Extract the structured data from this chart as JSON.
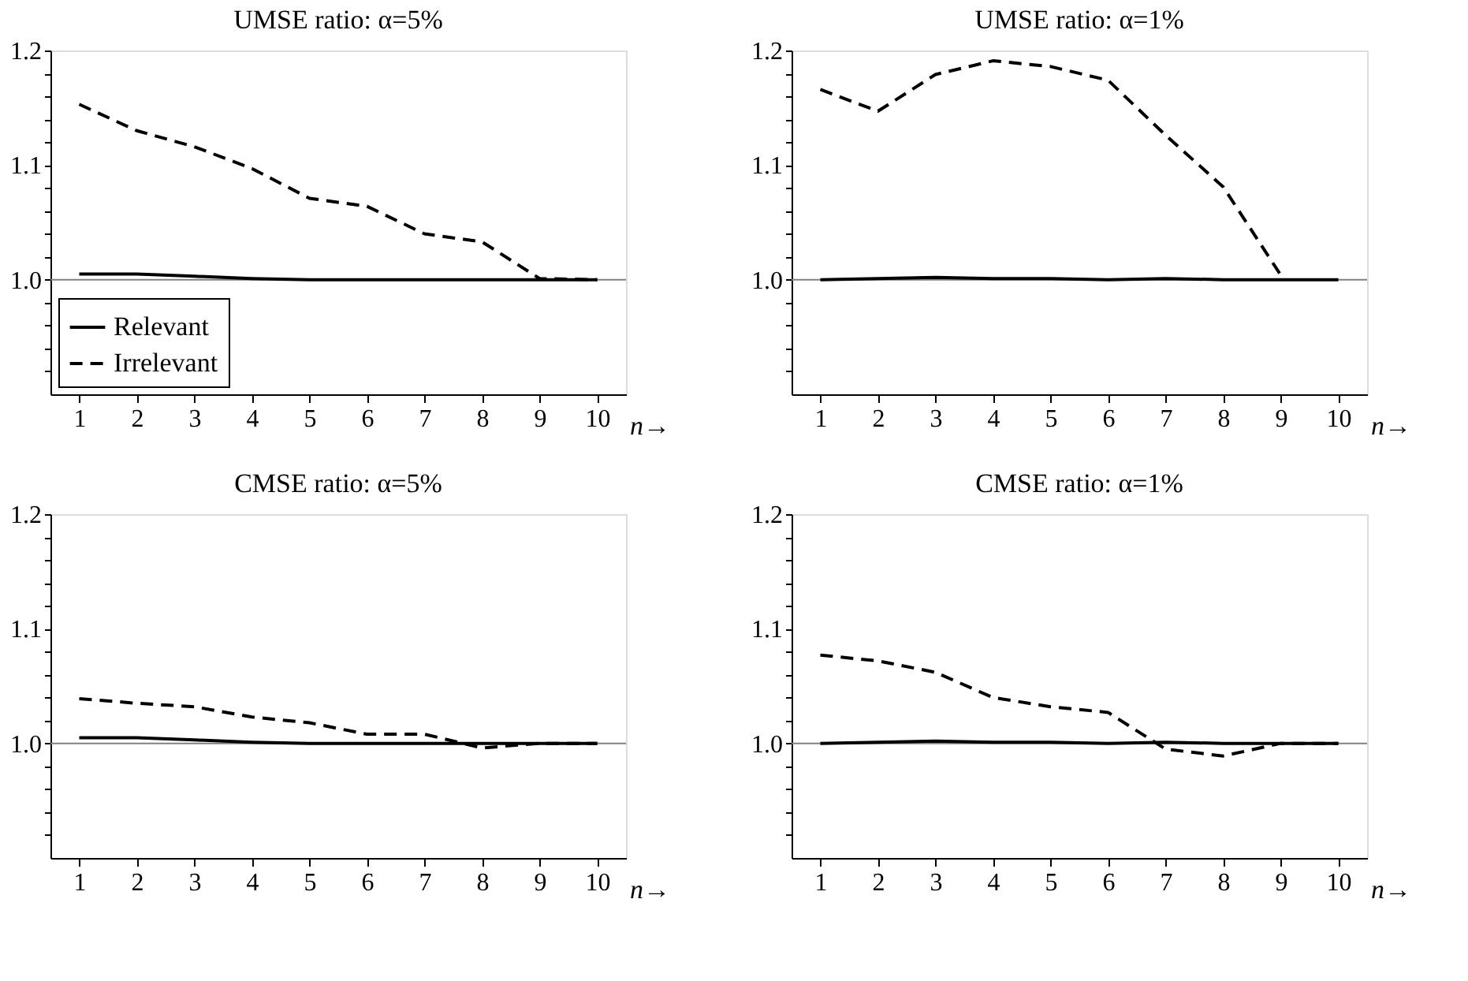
{
  "chart_data": [
    {
      "type": "line",
      "title": "UMSE ratio: α=5%",
      "xlabel": "n→",
      "x": [
        1,
        2,
        3,
        4,
        5,
        6,
        7,
        8,
        9,
        10
      ],
      "xlim": [
        0.5,
        10.5
      ],
      "xticks": [
        1,
        2,
        3,
        4,
        5,
        6,
        7,
        8,
        9,
        10
      ],
      "ylim": [
        0.9,
        1.2
      ],
      "yticks": [
        {
          "value": 0.92,
          "label": null
        },
        {
          "value": 0.94,
          "label": null
        },
        {
          "value": 0.96,
          "label": null
        },
        {
          "value": 0.98,
          "label": null
        },
        {
          "value": 1.0,
          "label": "1.0"
        },
        {
          "value": 1.02,
          "label": null
        },
        {
          "value": 1.04,
          "label": null
        },
        {
          "value": 1.06,
          "label": null
        },
        {
          "value": 1.08,
          "label": null
        },
        {
          "value": 1.1,
          "label": "1.1"
        },
        {
          "value": 1.12,
          "label": null
        },
        {
          "value": 1.14,
          "label": null
        },
        {
          "value": 1.16,
          "label": null
        },
        {
          "value": 1.18,
          "label": null
        },
        {
          "value": 1.2,
          "label": "1.2"
        }
      ],
      "series": [
        {
          "name": "Relevant",
          "color": "#000000",
          "line_style": "solid",
          "values": [
            1.005,
            1.005,
            1.003,
            1.001,
            1.0,
            1.0,
            1.0,
            1.0,
            1.0,
            1.0
          ]
        },
        {
          "name": "Irrelevant",
          "color": "#000000",
          "line_style": "dashed",
          "values": [
            1.153,
            1.13,
            1.116,
            1.097,
            1.071,
            1.064,
            1.04,
            1.033,
            1.001,
            1.0
          ]
        }
      ],
      "ref_lines": [
        {
          "axis": "y",
          "value": 1.0,
          "color": "#808080"
        }
      ],
      "legend": "bottom left",
      "grid": false
    },
    {
      "type": "line",
      "title": "UMSE ratio: α=1%",
      "xlabel": "n→",
      "x": [
        1,
        2,
        3,
        4,
        5,
        6,
        7,
        8,
        9,
        10
      ],
      "xlim": [
        0.5,
        10.5
      ],
      "xticks": [
        1,
        2,
        3,
        4,
        5,
        6,
        7,
        8,
        9,
        10
      ],
      "ylim": [
        0.9,
        1.2
      ],
      "yticks": [
        {
          "value": 0.92,
          "label": null
        },
        {
          "value": 0.94,
          "label": null
        },
        {
          "value": 0.96,
          "label": null
        },
        {
          "value": 0.98,
          "label": null
        },
        {
          "value": 1.0,
          "label": "1.0"
        },
        {
          "value": 1.02,
          "label": null
        },
        {
          "value": 1.04,
          "label": null
        },
        {
          "value": 1.06,
          "label": null
        },
        {
          "value": 1.08,
          "label": null
        },
        {
          "value": 1.1,
          "label": "1.1"
        },
        {
          "value": 1.12,
          "label": null
        },
        {
          "value": 1.14,
          "label": null
        },
        {
          "value": 1.16,
          "label": null
        },
        {
          "value": 1.18,
          "label": null
        },
        {
          "value": 1.2,
          "label": "1.2"
        }
      ],
      "series": [
        {
          "color": "#000000",
          "line_style": "solid",
          "values": [
            1.0,
            1.001,
            1.002,
            1.001,
            1.001,
            1.0,
            1.001,
            1.0,
            1.0,
            1.0
          ]
        },
        {
          "color": "#000000",
          "line_style": "dashed",
          "values": [
            1.166,
            1.147,
            1.179,
            1.191,
            1.186,
            1.174,
            1.126,
            1.081,
            1.004,
            null
          ]
        }
      ],
      "ref_lines": [
        {
          "axis": "y",
          "value": 1.0,
          "color": "#808080"
        }
      ],
      "grid": false
    },
    {
      "type": "line",
      "title": "CMSE ratio: α=5%",
      "xlabel": "n→",
      "x": [
        1,
        2,
        3,
        4,
        5,
        6,
        7,
        8,
        9,
        10
      ],
      "xlim": [
        0.5,
        10.5
      ],
      "xticks": [
        1,
        2,
        3,
        4,
        5,
        6,
        7,
        8,
        9,
        10
      ],
      "ylim": [
        0.9,
        1.2
      ],
      "yticks": [
        {
          "value": 0.92,
          "label": null
        },
        {
          "value": 0.94,
          "label": null
        },
        {
          "value": 0.96,
          "label": null
        },
        {
          "value": 0.98,
          "label": null
        },
        {
          "value": 1.0,
          "label": "1.0"
        },
        {
          "value": 1.02,
          "label": null
        },
        {
          "value": 1.04,
          "label": null
        },
        {
          "value": 1.06,
          "label": null
        },
        {
          "value": 1.08,
          "label": null
        },
        {
          "value": 1.1,
          "label": "1.1"
        },
        {
          "value": 1.12,
          "label": null
        },
        {
          "value": 1.14,
          "label": null
        },
        {
          "value": 1.16,
          "label": null
        },
        {
          "value": 1.18,
          "label": null
        },
        {
          "value": 1.2,
          "label": "1.2"
        }
      ],
      "series": [
        {
          "color": "#000000",
          "line_style": "solid",
          "values": [
            1.005,
            1.005,
            1.003,
            1.001,
            1.0,
            1.0,
            1.0,
            1.0,
            1.0,
            1.0
          ]
        },
        {
          "color": "#000000",
          "line_style": "dashed",
          "values": [
            1.039,
            1.035,
            1.032,
            1.023,
            1.018,
            1.008,
            1.008,
            0.996,
            1.0,
            1.0
          ]
        }
      ],
      "ref_lines": [
        {
          "axis": "y",
          "value": 1.0,
          "color": "#808080"
        }
      ],
      "grid": false
    },
    {
      "type": "line",
      "title": "CMSE ratio: α=1%",
      "xlabel": "n→",
      "x": [
        1,
        2,
        3,
        4,
        5,
        6,
        7,
        8,
        9,
        10
      ],
      "xlim": [
        0.5,
        10.5
      ],
      "xticks": [
        1,
        2,
        3,
        4,
        5,
        6,
        7,
        8,
        9,
        10
      ],
      "ylim": [
        0.9,
        1.2
      ],
      "yticks": [
        {
          "value": 0.92,
          "label": null
        },
        {
          "value": 0.94,
          "label": null
        },
        {
          "value": 0.96,
          "label": null
        },
        {
          "value": 0.98,
          "label": null
        },
        {
          "value": 1.0,
          "label": "1.0"
        },
        {
          "value": 1.02,
          "label": null
        },
        {
          "value": 1.04,
          "label": null
        },
        {
          "value": 1.06,
          "label": null
        },
        {
          "value": 1.08,
          "label": null
        },
        {
          "value": 1.1,
          "label": "1.1"
        },
        {
          "value": 1.12,
          "label": null
        },
        {
          "value": 1.14,
          "label": null
        },
        {
          "value": 1.16,
          "label": null
        },
        {
          "value": 1.18,
          "label": null
        },
        {
          "value": 1.2,
          "label": "1.2"
        }
      ],
      "series": [
        {
          "color": "#000000",
          "line_style": "solid",
          "values": [
            1.0,
            1.001,
            1.002,
            1.001,
            1.001,
            1.0,
            1.001,
            1.0,
            1.0,
            1.0
          ]
        },
        {
          "color": "#000000",
          "line_style": "dashed",
          "values": [
            1.077,
            1.072,
            1.062,
            1.04,
            1.032,
            1.027,
            0.995,
            0.989,
            1.0,
            1.0
          ]
        }
      ],
      "ref_lines": [
        {
          "axis": "y",
          "value": 1.0,
          "color": "#808080"
        }
      ],
      "grid": false
    }
  ]
}
